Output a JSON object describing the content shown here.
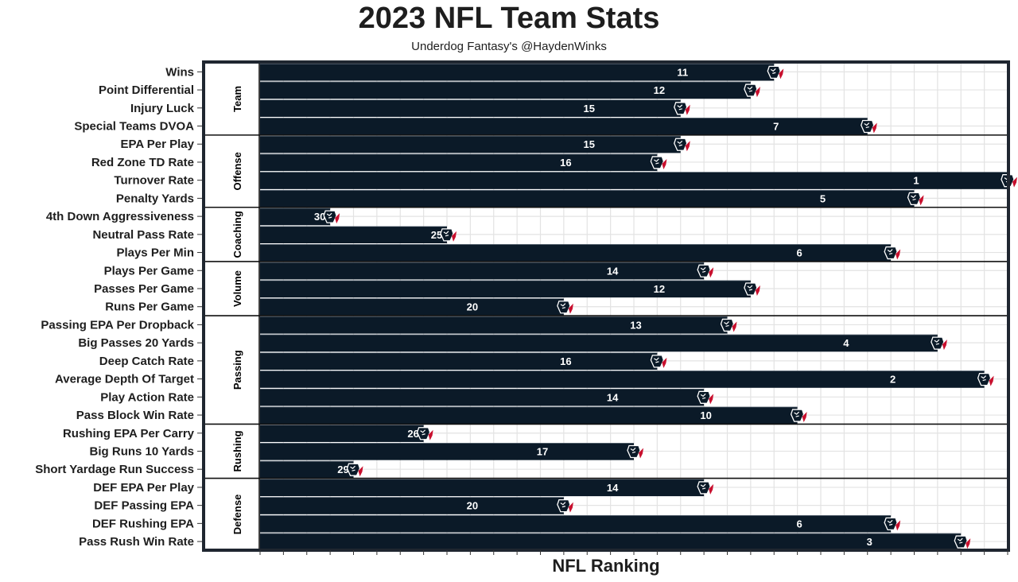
{
  "chart_data": {
    "type": "bar",
    "orientation": "horizontal",
    "title": "2023 NFL Team Stats",
    "subtitle": "Underdog Fantasy's @HaydenWinks",
    "xlabel": "NFL Ranking",
    "ylabel": "",
    "x_scale": "reversed",
    "xlim": [
      32,
      1
    ],
    "grid": true,
    "marker_icon": "texans-logo-icon",
    "colors": {
      "bar": "#0b1a28",
      "logo_red": "#c8102e",
      "logo_navy": "#0b1a28",
      "grid": "#e3e3e3",
      "border": "#1f2630"
    },
    "groups": [
      {
        "name": "Team",
        "rows": [
          {
            "category": "Wins",
            "value": 11
          },
          {
            "category": "Point Differential",
            "value": 12
          },
          {
            "category": "Injury Luck",
            "value": 15
          },
          {
            "category": "Special Teams DVOA",
            "value": 7
          }
        ]
      },
      {
        "name": "Offense",
        "rows": [
          {
            "category": "EPA Per Play",
            "value": 15
          },
          {
            "category": "Red Zone TD Rate",
            "value": 16
          },
          {
            "category": "Turnover Rate",
            "value": 1
          },
          {
            "category": "Penalty Yards",
            "value": 5
          }
        ]
      },
      {
        "name": "Coaching",
        "rows": [
          {
            "category": "4th Down Aggressiveness",
            "value": 30
          },
          {
            "category": "Neutral Pass Rate",
            "value": 25
          },
          {
            "category": "Plays Per Min",
            "value": 6
          }
        ]
      },
      {
        "name": "Volume",
        "rows": [
          {
            "category": "Plays Per Game",
            "value": 14
          },
          {
            "category": "Passes Per Game",
            "value": 12
          },
          {
            "category": "Runs Per Game",
            "value": 20
          }
        ]
      },
      {
        "name": "Passing",
        "rows": [
          {
            "category": "Passing EPA Per Dropback",
            "value": 13
          },
          {
            "category": "Big Passes 20 Yards",
            "value": 4
          },
          {
            "category": "Deep Catch Rate",
            "value": 16
          },
          {
            "category": "Average Depth Of Target",
            "value": 2
          },
          {
            "category": "Play Action Rate",
            "value": 14
          },
          {
            "category": "Pass Block Win Rate",
            "value": 10
          }
        ]
      },
      {
        "name": "Rushing",
        "rows": [
          {
            "category": "Rushing EPA Per Carry",
            "value": 26
          },
          {
            "category": "Big Runs 10 Yards",
            "value": 17
          },
          {
            "category": "Short Yardage Run Success",
            "value": 29
          }
        ]
      },
      {
        "name": "Defense",
        "rows": [
          {
            "category": "DEF EPA Per Play",
            "value": 14
          },
          {
            "category": "DEF Passing EPA",
            "value": 20
          },
          {
            "category": "DEF Rushing EPA",
            "value": 6
          },
          {
            "category": "Pass Rush Win Rate",
            "value": 3
          }
        ]
      }
    ]
  }
}
